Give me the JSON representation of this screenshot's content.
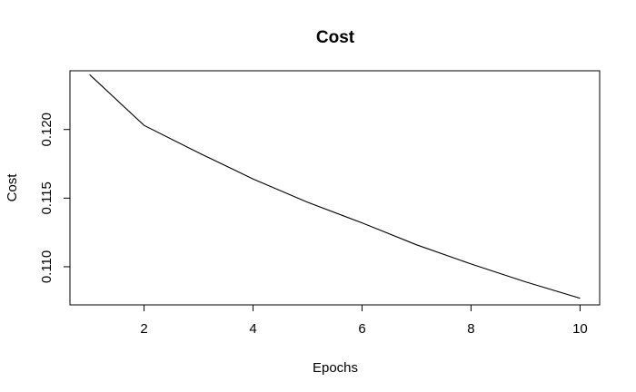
{
  "chart_data": {
    "type": "line",
    "title": "Cost",
    "xlabel": "Epochs",
    "ylabel": "Cost",
    "x": [
      1,
      2,
      3,
      4,
      5,
      6,
      7,
      8,
      9,
      10
    ],
    "series": [
      {
        "values": [
          0.124,
          0.1203,
          0.1183,
          0.1164,
          0.1147,
          0.1132,
          0.1116,
          0.1102,
          0.1089,
          0.1077
        ]
      }
    ],
    "xlim": [
      0.64,
      10.36
    ],
    "ylim": [
      0.10722,
      0.12428
    ],
    "x_ticks": [
      2,
      4,
      6,
      8,
      10
    ],
    "y_ticks": [
      0.11,
      0.115,
      0.12
    ],
    "x_tick_labels": [
      "2",
      "4",
      "6",
      "8",
      "10"
    ],
    "y_tick_labels": [
      "0.110",
      "0.115",
      "0.120"
    ],
    "grid": false,
    "line_color": "#000000",
    "frame_color": "#000000"
  }
}
